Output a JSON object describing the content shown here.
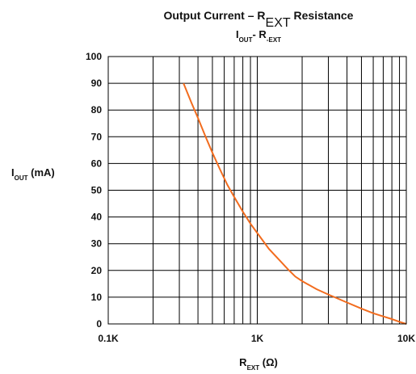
{
  "chart_data": {
    "type": "line",
    "title_main": "Output Current – R",
    "title_main_sub": "EXT",
    "title_main_tail": " Resistance",
    "subtitle_i": "I",
    "subtitle_i_sub": "OUT",
    "subtitle_sep": "- R",
    "subtitle_r_sub": "-EXT",
    "ylabel_main": "I",
    "ylabel_sub": "OUT",
    "ylabel_unit": " (mA)",
    "xlabel_main": "R",
    "xlabel_sub": "EXT",
    "xlabel_unit": " (Ω)",
    "x_scale": "log",
    "x_unit": "ohm",
    "xlim": [
      100,
      10000
    ],
    "ylim": [
      0,
      100
    ],
    "grid": true,
    "x_tick_labels": [
      "0.1K",
      "1K",
      "10K"
    ],
    "x_tick_values": [
      100,
      1000,
      10000
    ],
    "y_ticks": [
      0,
      10,
      20,
      30,
      40,
      50,
      60,
      70,
      80,
      90,
      100
    ],
    "line_color": "#f26c1e",
    "series": [
      {
        "x": [
          320,
          360,
          400,
          450,
          500,
          560,
          630,
          700,
          800,
          900,
          1000,
          1200,
          1400,
          1600,
          1800,
          2000,
          2500,
          3000,
          4000,
          5000,
          6000,
          7000,
          8000,
          9000,
          10000
        ],
        "values": [
          90,
          83,
          77,
          70,
          64,
          58,
          52,
          47.5,
          42,
          37.5,
          34,
          28,
          24,
          20.5,
          17.7,
          16,
          13,
          11,
          8,
          5.7,
          4,
          2.8,
          1.8,
          0.8,
          0
        ]
      }
    ]
  }
}
